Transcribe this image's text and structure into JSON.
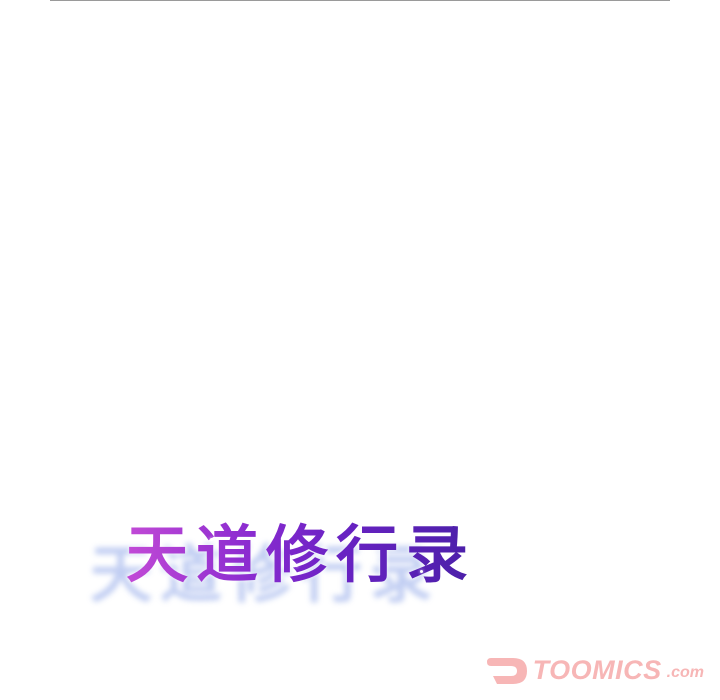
{
  "title": {
    "text": "天道修行录"
  },
  "logo": {
    "brand": "TOOMICS",
    "suffix": ".com",
    "color": "#f7b6b6"
  },
  "colors": {
    "title_gradient_start": "#c24ad6",
    "title_gradient_end": "#4a1fa8",
    "title_shadow": "#8fa6e8"
  }
}
